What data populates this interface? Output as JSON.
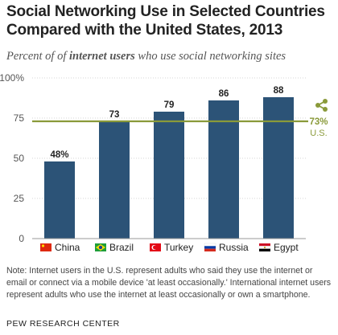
{
  "header": {
    "title": "Social Networking Use in Selected Countries Compared with the United States, 2013",
    "subtitle_before": "Percent of of ",
    "subtitle_bold": "internet users",
    "subtitle_after": " who use social networking sites"
  },
  "chart_data": {
    "type": "bar",
    "categories": [
      "China",
      "Brazil",
      "Turkey",
      "Russia",
      "Egypt"
    ],
    "values": [
      48,
      73,
      79,
      86,
      88
    ],
    "value_labels": [
      "48%",
      "73",
      "79",
      "86",
      "88"
    ],
    "ylim": [
      0,
      100
    ],
    "yticks": [
      0,
      25,
      50,
      75,
      100
    ],
    "ytick_labels": [
      "0",
      "25",
      "50",
      "75",
      "100%"
    ],
    "grid": true,
    "bar_color": "#2c5377",
    "reference_line": {
      "value": 73,
      "label_value": "73%",
      "label_name": "U.S.",
      "color": "#8a9a3a",
      "icon": "share-icon"
    },
    "flags": [
      "china-flag-icon",
      "brazil-flag-icon",
      "turkey-flag-icon",
      "russia-flag-icon",
      "egypt-flag-icon"
    ]
  },
  "footer": {
    "note": "Note: Internet users in the U.S. represent adults who said they use the internet or email or connect via a mobile device 'at least occasionally.' International internet users represent adults who use the internet at least occasionally or own a smartphone.",
    "source": "PEW RESEARCH CENTER"
  }
}
